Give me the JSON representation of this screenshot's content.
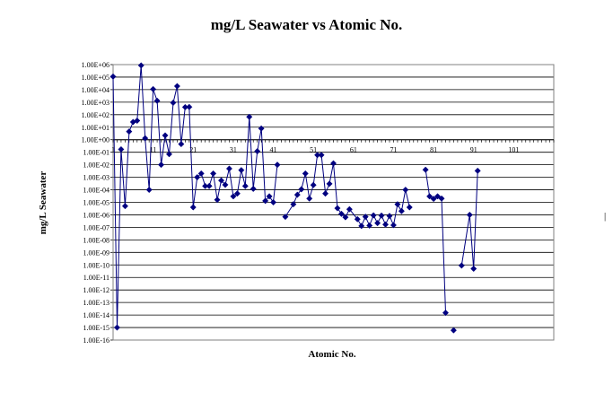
{
  "chart_data": {
    "type": "line",
    "title": "mg/L Seawater vs Atomic No.",
    "xlabel": "Atomic No.",
    "ylabel": "mg/L Seawater",
    "y_scale": "log",
    "ylim": [
      1e-16,
      1000000.0
    ],
    "xlim": [
      1,
      111
    ],
    "x_tick_labels": [
      "1",
      "11",
      "21",
      "31",
      "41",
      "51",
      "61",
      "71",
      "81",
      "91",
      "101"
    ],
    "y_tick_labels": [
      "1.00E+06",
      "1.00E+05",
      "1.00E+04",
      "1.00E+03",
      "1.00E+02",
      "1.00E+01",
      "1.00E+00",
      "1.00E-01",
      "1.00E-02",
      "1.00E-03",
      "1.00E-04",
      "1.00E-05",
      "1.00E-06",
      "1.00E-07",
      "1.00E-08",
      "1.00E-09",
      "1.00E-10",
      "1.00E-11",
      "1.00E-12",
      "1.00E-13",
      "1.00E-14",
      "1.00E-15",
      "1.00E-16"
    ],
    "grid": "horizontal",
    "legend": "none",
    "line_color": "#000080",
    "marker": "diamond",
    "segments": [
      {
        "x": [
          1,
          2,
          3,
          4,
          5,
          6,
          7,
          8,
          9,
          10,
          11,
          12,
          13,
          14,
          15,
          16,
          17,
          18,
          19,
          20,
          21,
          22,
          23,
          24,
          25,
          26,
          27,
          28,
          29,
          30,
          31,
          32,
          33,
          34,
          35,
          36,
          37,
          38,
          39,
          40,
          41,
          42
        ],
        "y": [
          110000.0,
          1e-15,
          0.17,
          5e-06,
          4.5,
          26,
          33,
          860000.0,
          1.3,
          0.0001,
          11000.0,
          1290,
          0.01,
          2.2,
          0.07,
          900,
          19000.0,
          0.45,
          399,
          412,
          4e-06,
          0.001,
          0.002,
          0.0002,
          0.0002,
          0.002,
          1.6e-05,
          0.00056,
          0.00025,
          0.0049,
          3e-05,
          5e-05,
          0.0037,
          0.0002,
          67,
          0.00012,
          0.12,
          7.9,
          1.3e-05,
          3e-05,
          1e-05,
          0.01
        ]
      },
      {
        "x": [
          44,
          46,
          47,
          48,
          49,
          50,
          51,
          52,
          53,
          54,
          55,
          56,
          57,
          58,
          59,
          60,
          62,
          63,
          64,
          65,
          66,
          67,
          68,
          69,
          70,
          71,
          72,
          73,
          74,
          75
        ],
        "y": [
          7e-07,
          7e-06,
          4e-05,
          0.00011,
          0.002,
          2e-05,
          0.00024,
          0.06,
          0.06,
          5e-05,
          0.0003,
          0.013,
          3.4e-06,
          1.2e-06,
          6.4e-07,
          2.8e-06,
          4.5e-07,
          1.3e-07,
          7e-07,
          1.4e-07,
          9.1e-07,
          2.2e-07,
          8.7e-07,
          1.7e-07,
          8.2e-07,
          1.5e-07,
          7e-06,
          2e-06,
          0.0001,
          4e-06
        ]
      },
      {
        "x": [
          79,
          80,
          81,
          82,
          83,
          84
        ],
        "y": [
          0.004,
          3e-05,
          1.9e-05,
          3e-05,
          2e-05,
          1.5e-14
        ]
      },
      {
        "x": [
          86
        ],
        "y": [
          6e-16
        ]
      },
      {
        "x": [
          88,
          90,
          91,
          92
        ],
        "y": [
          8.9e-11,
          1e-06,
          5e-11,
          0.0033
        ]
      }
    ]
  }
}
